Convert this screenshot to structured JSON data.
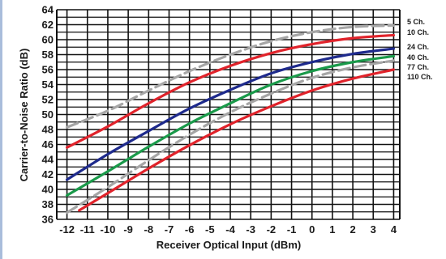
{
  "chart_data": {
    "type": "line",
    "title": "",
    "xlabel": "Receiver Optical Input (dBm)",
    "ylabel": "Carrier-to-Noise Ratio (dB)",
    "xlim": [
      -12.5,
      4.3
    ],
    "ylim": [
      36,
      64
    ],
    "x_ticks": [
      "-12",
      "-11",
      "-10",
      "-9",
      "-8",
      "-7",
      "-6",
      "-5",
      "-4",
      "-3",
      "-2",
      "-1",
      "0",
      "1",
      "2",
      "3",
      "4"
    ],
    "y_ticks": [
      "36",
      "38",
      "40",
      "42",
      "44",
      "46",
      "48",
      "50",
      "52",
      "54",
      "56",
      "58",
      "60",
      "62",
      "64"
    ],
    "grid": true,
    "legend_position": "right",
    "series": [
      {
        "name": "5 Ch.",
        "color": "#a6a6a6",
        "style": "dashed",
        "x": [
          -12,
          -10,
          -8,
          -6,
          -4,
          -2,
          0,
          2,
          4
        ],
        "y": [
          48.3,
          50.5,
          53.2,
          55.8,
          58.0,
          59.8,
          61.0,
          61.7,
          61.9
        ]
      },
      {
        "name": "10 Ch.",
        "color": "#e0232b",
        "style": "solid",
        "x": [
          -12,
          -10,
          -8,
          -6,
          -4,
          -2,
          0,
          2,
          4
        ],
        "y": [
          45.6,
          48.4,
          51.5,
          54.3,
          56.5,
          58.2,
          59.4,
          60.2,
          60.6
        ]
      },
      {
        "name": "24 Ch.",
        "color": "#1e2a8c",
        "style": "solid",
        "x": [
          -12,
          -10,
          -8,
          -6,
          -4,
          -2,
          0,
          2,
          4
        ],
        "y": [
          41.3,
          44.7,
          47.8,
          50.8,
          53.3,
          55.5,
          57.0,
          58.1,
          58.8
        ]
      },
      {
        "name": "40 Ch.",
        "color": "#1a9a4a",
        "style": "solid",
        "x": [
          -12,
          -10,
          -8,
          -6,
          -4,
          -2,
          0,
          2,
          4
        ],
        "y": [
          39.2,
          42.4,
          45.7,
          48.8,
          51.5,
          54.0,
          55.8,
          57.0,
          57.8
        ]
      },
      {
        "name": "77 Ch.",
        "color": "#a6a6a6",
        "style": "dashed",
        "x": [
          -12,
          -10,
          -8,
          -6,
          -4,
          -2,
          0,
          2,
          4
        ],
        "y": [
          36.9,
          40.3,
          43.9,
          47.3,
          50.3,
          52.8,
          54.9,
          56.3,
          57.2
        ]
      },
      {
        "name": "110 Ch.",
        "color": "#e0232b",
        "style": "solid",
        "x": [
          -11.4,
          -10,
          -8,
          -6,
          -4,
          -2,
          0,
          2,
          4
        ],
        "y": [
          37.2,
          39.5,
          42.8,
          45.9,
          48.7,
          51.1,
          53.2,
          54.8,
          56.0
        ]
      }
    ]
  }
}
